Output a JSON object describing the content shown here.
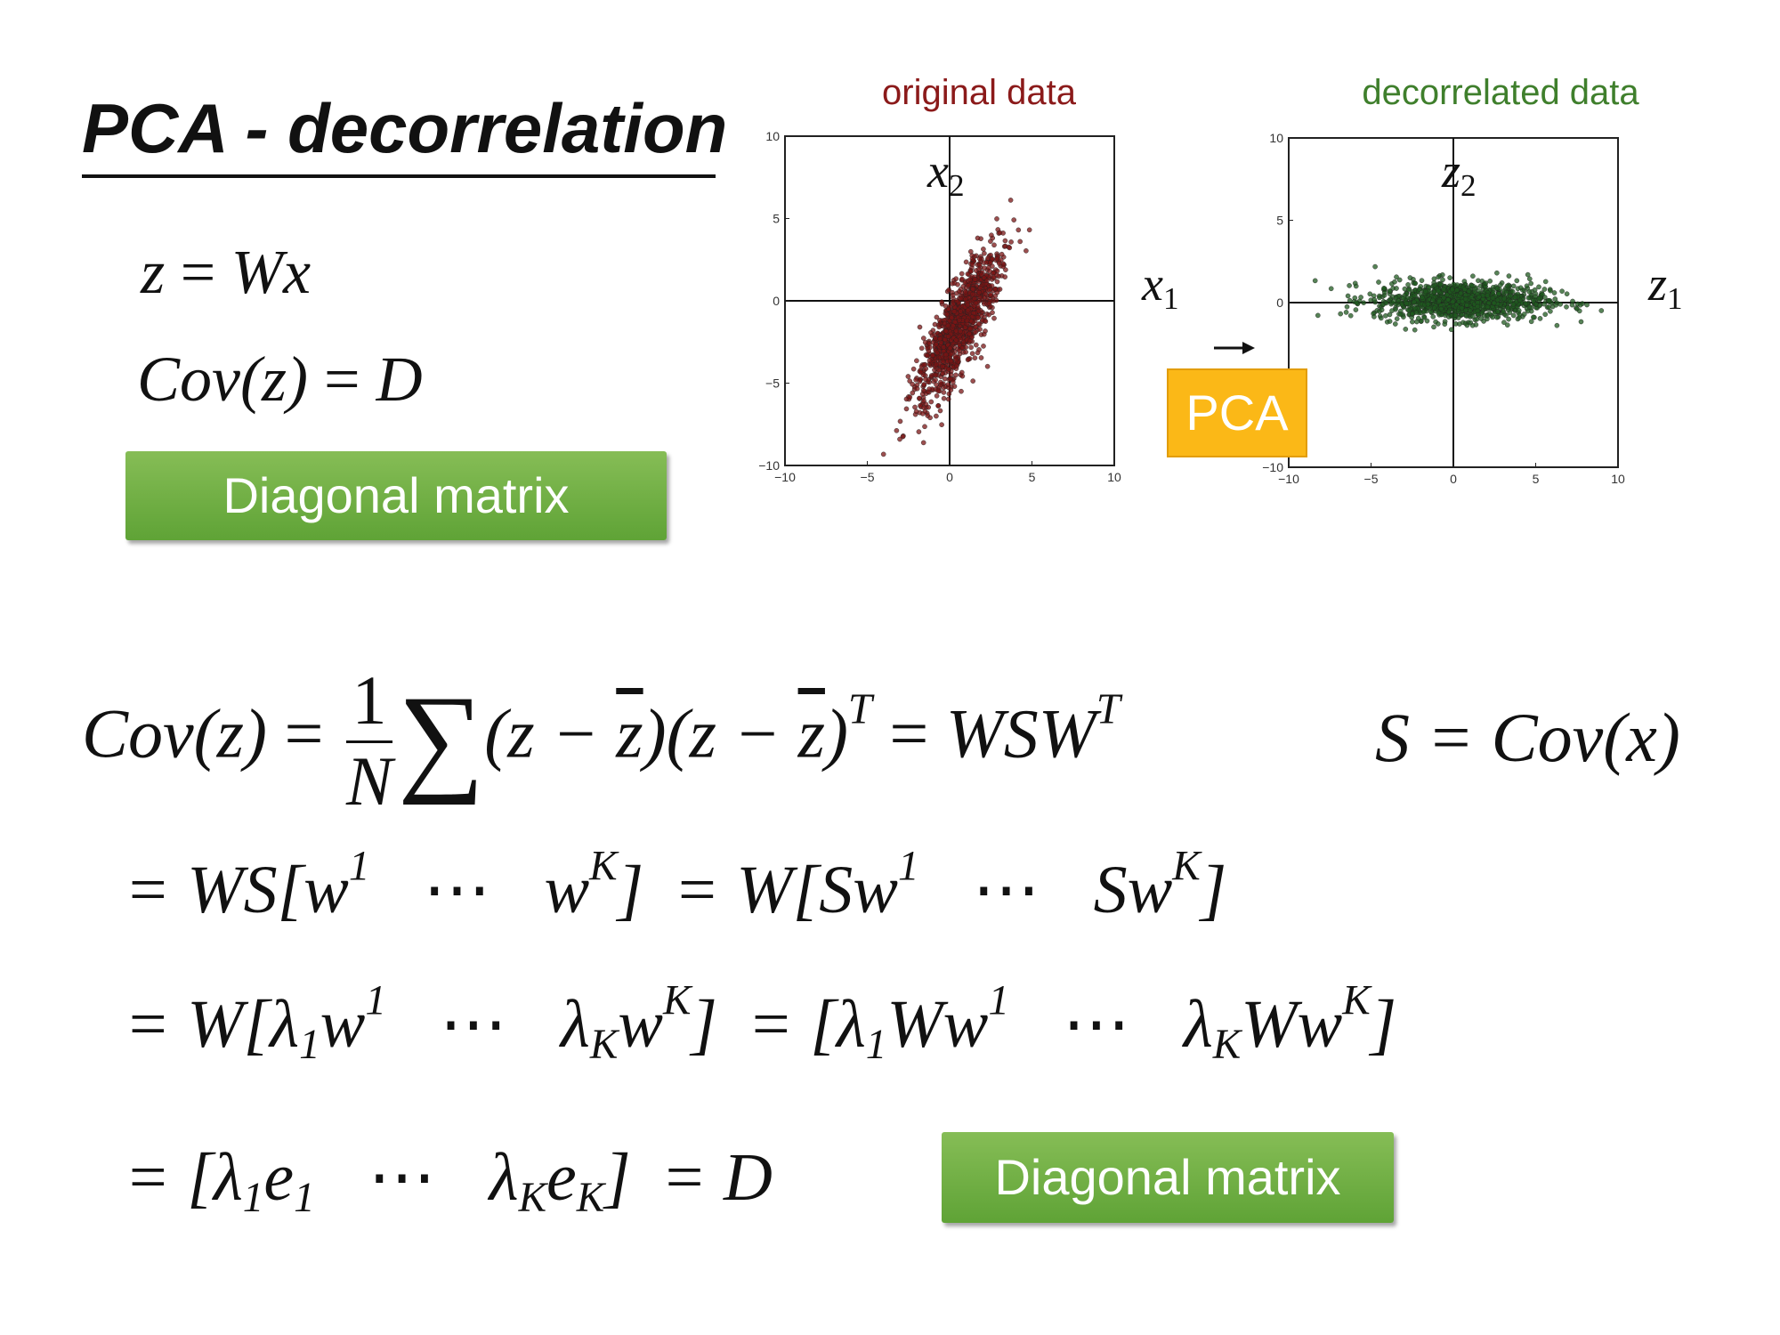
{
  "title": "PCA - decorrelation",
  "top_left": {
    "eq1": {
      "lhs": "z",
      "op": "=",
      "rhs": "Wx"
    },
    "eq2": {
      "lhs": "Cov(z)",
      "op": "=",
      "rhs": "D"
    },
    "badge": "Diagonal matrix"
  },
  "plots": {
    "left": {
      "title": "original data",
      "title_color": "#8b1a1a",
      "x_label": "x",
      "x_sub": "1",
      "y_label": "x",
      "y_sub": "2",
      "ticks_x": [
        "−10",
        "−5",
        "0",
        "5",
        "10"
      ],
      "ticks_y": [
        "10",
        "5",
        "0",
        "−5",
        "−10"
      ],
      "point_color": "#7a1414"
    },
    "right": {
      "title": "decorrelated data",
      "title_color": "#3f7f2c",
      "x_label": "z",
      "x_sub": "1",
      "y_label": "z",
      "y_sub": "2",
      "ticks_x": [
        "−10",
        "−5",
        "0",
        "5",
        "10"
      ],
      "ticks_y": [
        "10",
        "5",
        "0",
        "−5",
        "−10"
      ],
      "point_color": "#1f5a1f"
    },
    "transform_label": "PCA",
    "ranges": {
      "xlim": [
        -10,
        10
      ],
      "ylim": [
        -10,
        10
      ]
    }
  },
  "derivation": {
    "line1": {
      "lhs": "Cov(z)",
      "eq": "=",
      "frac_num": "1",
      "frac_den": "N",
      "sum": "∑",
      "term": "(z − ",
      "zbar": "z",
      "term2": ")(z − ",
      "zbar2": "z",
      "term3": ")",
      "sup_T": "T",
      "eq2": "=",
      "wsw": "WSW",
      "sup_T2": "T",
      "s_def": "S = Cov(x)"
    },
    "line2": {
      "p1": "= WS[w",
      "s1": "1",
      "dots": "⋯",
      "p2": "w",
      "s2": "K",
      "p3": "]",
      "p4": "= W[Sw",
      "s3": "1",
      "dots2": "⋯",
      "p5": "Sw",
      "s4": "K",
      "p6": "]"
    },
    "line3": {
      "p1": "= W[λ",
      "b1": "1",
      "p2": "w",
      "s1": "1",
      "dots": "⋯",
      "p3": "λ",
      "b2": "K",
      "p4": "w",
      "s2": "K",
      "p5": "]",
      "p6": "= [λ",
      "b3": "1",
      "p7": "Ww",
      "s3": "1",
      "dots2": "⋯",
      "p8": "λ",
      "b4": "K",
      "p9": "Ww",
      "s4": "K",
      "p10": "]"
    },
    "line4": {
      "p1": "= [λ",
      "b1": "1",
      "p2": "e",
      "b2": "1",
      "dots": "⋯",
      "p3": "λ",
      "b3": "K",
      "p4": "e",
      "b4": "K",
      "p5": "]",
      "p6": "= D",
      "badge": "Diagonal matrix"
    }
  }
}
